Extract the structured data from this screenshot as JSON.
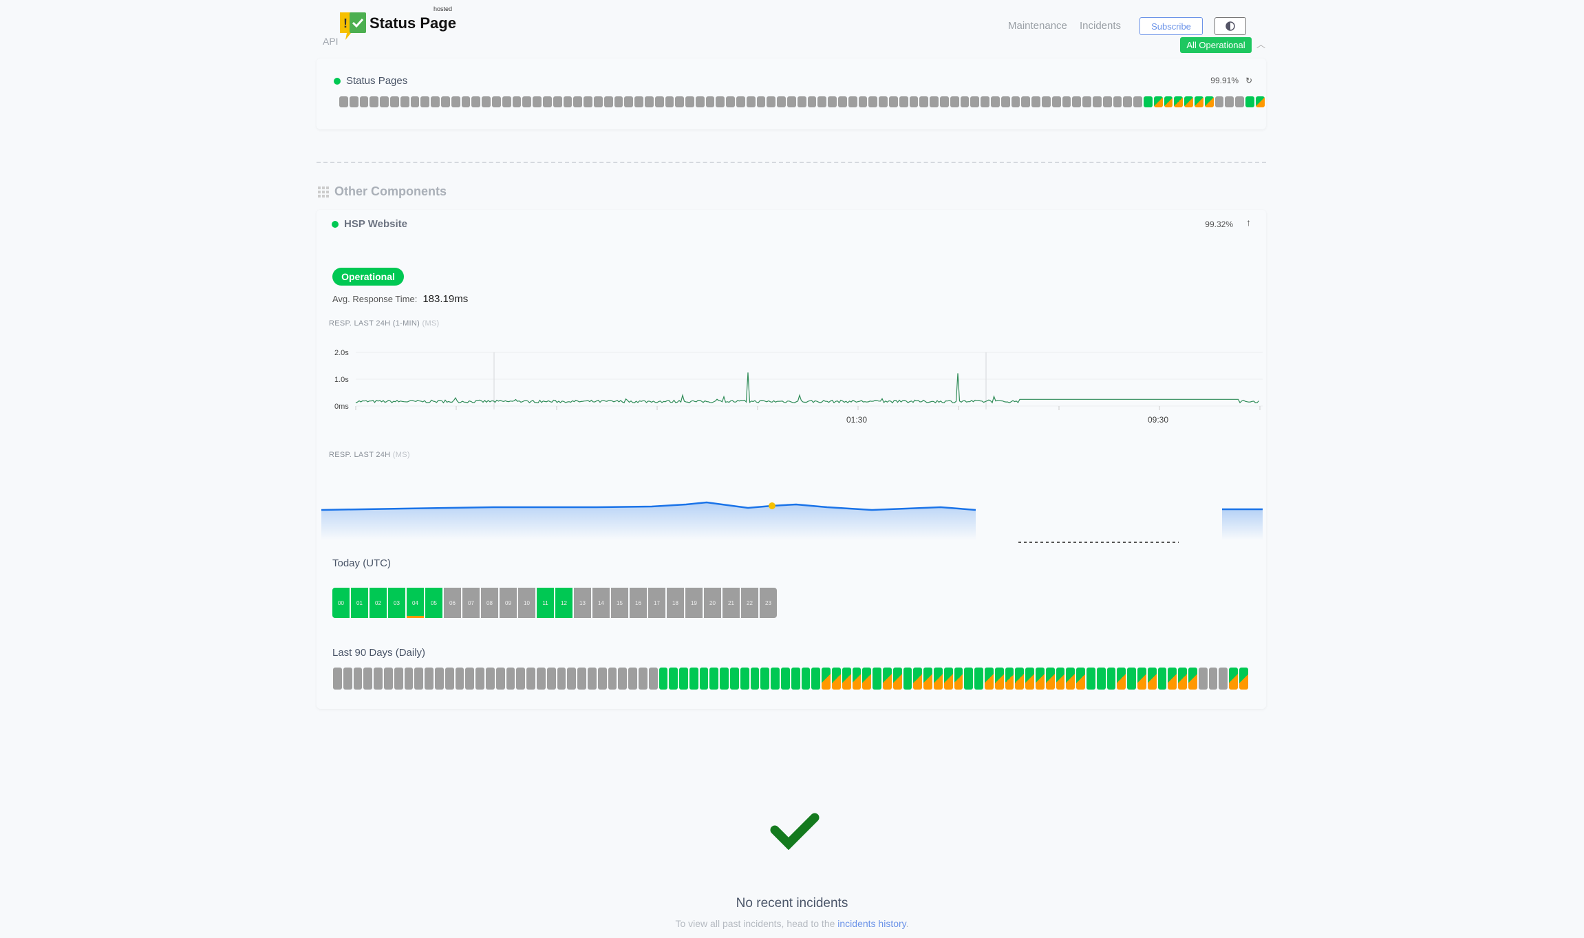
{
  "header": {
    "logo_text": "Status Page",
    "logo_badge": "hosted",
    "api_label": "API",
    "nav": [
      "Maintenance",
      "Incidents"
    ],
    "subscribe": "Subscribe",
    "theme_icon": "half-circle-icon",
    "overall_status": "All Operational"
  },
  "colors": {
    "operational": "#00c853",
    "degraded": "#ff9800",
    "nodata": "#9e9e9e",
    "accent": "#6b93e8",
    "line": "#2e8b57",
    "area": "#1a73e8"
  },
  "status_pages": {
    "name": "Status Pages",
    "uptime": "99.91%",
    "bars": "gggggggggggggggggggggggggggggggggggggggggggggggggggggggggggggggggggggggggggggggGOOOOOOgggGO"
  },
  "other": {
    "title": "Other Components",
    "component": {
      "name": "HSP Website",
      "uptime": "99.32%",
      "status": "Operational",
      "avg_label": "Avg. Response Time:",
      "avg_value": "183.19ms"
    }
  },
  "chart1": {
    "label": "RESP. LAST 24H (1-MIN)",
    "unit": "(MS)",
    "y_ticks": [
      "2.0s",
      "1.0s",
      "0ms"
    ],
    "x_ticks": [
      "01:30",
      "09:30"
    ]
  },
  "chart2": {
    "label": "RESP. LAST 24H",
    "unit": "(MS)"
  },
  "chart_data": {
    "type": "line",
    "y_ticks": [
      "0ms",
      "1.0s",
      "2.0s"
    ],
    "ylim": [
      0,
      2
    ],
    "x_ticks": [
      "01:30",
      "09:30"
    ],
    "baseline_s": 0.17,
    "spikes_s": [
      1.25,
      1.22
    ]
  },
  "today": {
    "title": "Today (UTC)",
    "hours": [
      "00",
      "01",
      "02",
      "03",
      "04",
      "05",
      "06",
      "07",
      "08",
      "09",
      "10",
      "11",
      "12",
      "13",
      "14",
      "15",
      "16",
      "17",
      "18",
      "19",
      "20",
      "21",
      "22",
      "23"
    ],
    "states": "GGGGGGgggggGGggggggggggg",
    "warn_hour": "04"
  },
  "days90": {
    "title": "Last 90 Days (Daily)",
    "bars": "ggggggggggggggggggggggggggggggggGGGGGGGGGGGGGGGGOOOOOGOOGOOOOOGGOOOOOOOOOOGGGOGOOGOOOgggOO"
  },
  "incidents": {
    "title": "No recent incidents",
    "text": "To view all past incidents, head to the",
    "link": "incidents history",
    "end": "."
  }
}
